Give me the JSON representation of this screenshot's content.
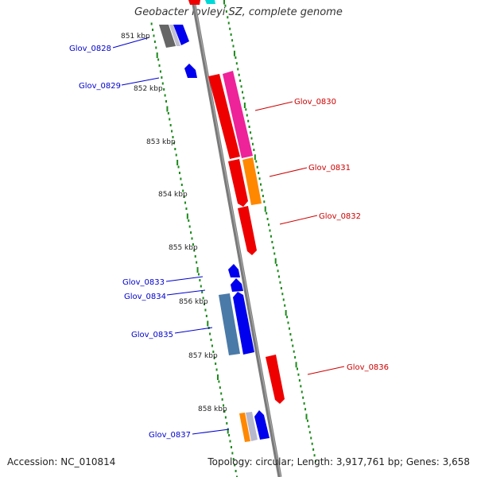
{
  "title": "Geobacter lovleyi SZ, complete genome",
  "footer": {
    "accession": "Accession: NC_010814",
    "summary": "Topology: circular; Length: 3,917,761 bp; Genes: 3,658"
  },
  "colors": {
    "backbone": "#7a7a7a",
    "tick": "#1a8a1a",
    "forward_label": "#0000cc",
    "reverse_label": "#cc0000",
    "blue": "#0000ee",
    "red": "#ee0000",
    "magenta": "#ee2299",
    "orange": "#ff8800",
    "steelblue": "#4a7aa8",
    "gray": "#666666",
    "cyan": "#00d8d8",
    "light": "#b8b8cc"
  },
  "scale_labels": [
    "851 kbp",
    "852 kbp",
    "853 kbp",
    "854 kbp",
    "855 kbp",
    "856 kbp",
    "857 kbp",
    "858 kbp"
  ],
  "gene_labels": {
    "left": [
      "Glov_0828",
      "Glov_0829",
      "Glov_0833",
      "Glov_0834",
      "Glov_0835",
      "Glov_0837"
    ],
    "right": [
      "Glov_0830",
      "Glov_0831",
      "Glov_0832",
      "Glov_0836"
    ]
  }
}
